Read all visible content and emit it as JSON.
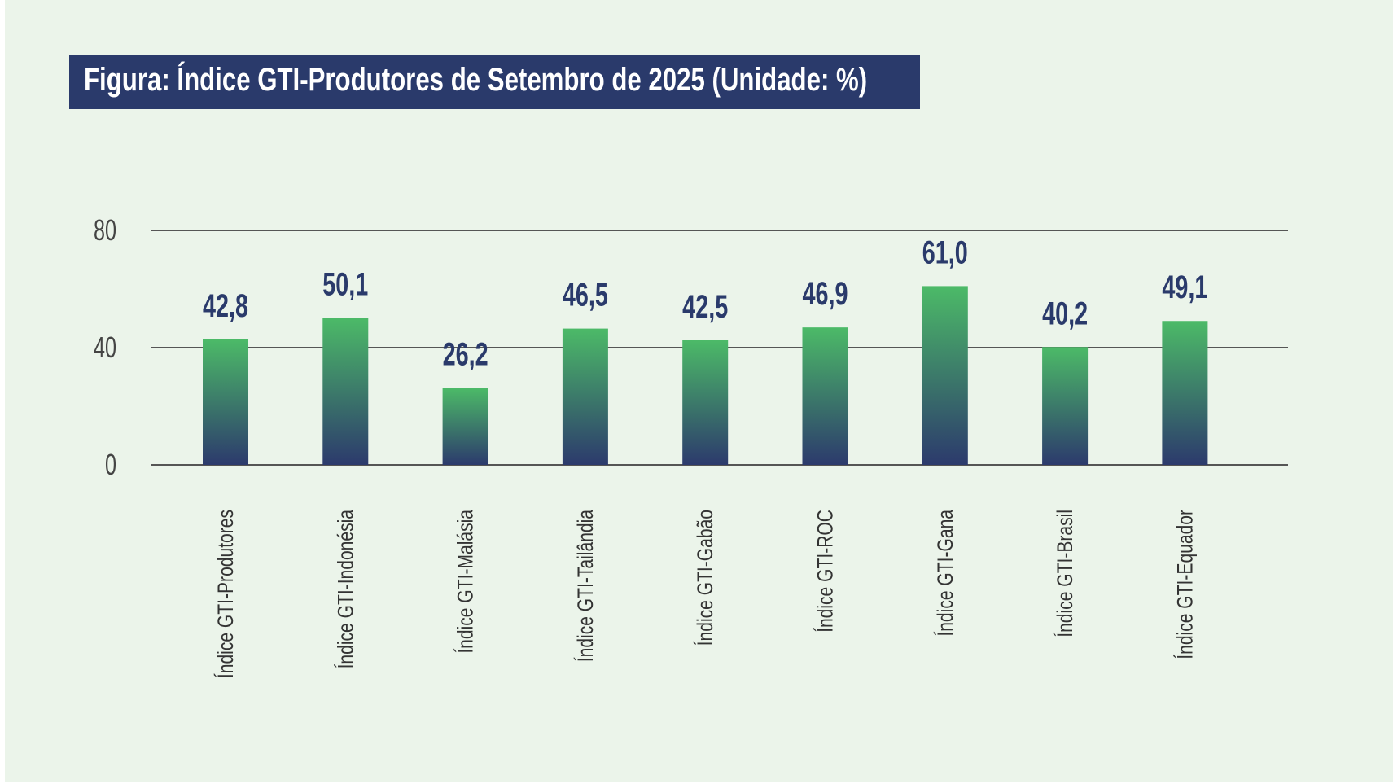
{
  "chart_data": {
    "type": "bar",
    "title": "Figura: Índice GTI-Produtores de Setembro de 2025 (Unidade: %)",
    "categories": [
      "Índice GTI-Produtores",
      "Índice GTI-Indonésia",
      "Índice GTI-Malásia",
      "Índice GTI-Tailândia",
      "Índice GTI-Gabão",
      "Índice GTI-ROC",
      "Índice GTI-Gana",
      "Índice GTI-Brasil",
      "Índice GTI-Equador"
    ],
    "values": [
      42.8,
      50.1,
      26.2,
      46.5,
      42.5,
      46.9,
      61.0,
      40.2,
      49.1
    ],
    "data_labels": [
      "42,8",
      "50,1",
      "26,2",
      "46,5",
      "42,5",
      "46,9",
      "61,0",
      "40,2",
      "49,1"
    ],
    "xlabel": "",
    "ylabel": "",
    "ylim": [
      0,
      80
    ],
    "yticks": [
      "0",
      "40",
      "80"
    ],
    "grid": true,
    "colors": {
      "bar_top": "#4cba68",
      "bar_bottom": "#2c3a6c",
      "label": "#2a3a6b",
      "title_bg": "#2a3a6b",
      "background": "#ebf4ea",
      "grid": "#555555"
    }
  }
}
